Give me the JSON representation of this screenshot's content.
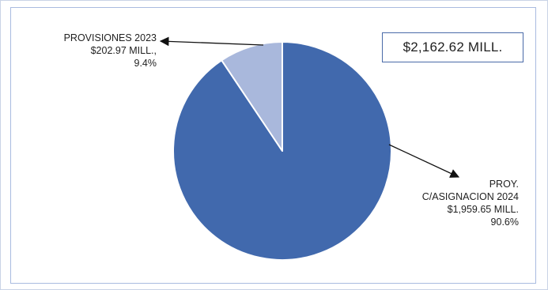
{
  "chart_data": {
    "type": "pie",
    "total_label": "$2,162.62 MILL.",
    "slices": [
      {
        "id": "proy",
        "lines": [
          "PROY.",
          "C/ASIGNACION 2024",
          "$1,959.65 MILL.",
          "90.6%"
        ],
        "value": 1959.65,
        "percent": 90.6,
        "color": "#4169ad"
      },
      {
        "id": "provisiones",
        "lines": [
          "PROVISIONES 2023",
          "$202.97 MILL.,",
          "9.4%"
        ],
        "value": 202.97,
        "percent": 9.4,
        "color": "#a9b8dc"
      }
    ]
  },
  "colors": {
    "border": "#a9bbe0",
    "slice_edge": "#ffffff",
    "leader": "#111111"
  }
}
